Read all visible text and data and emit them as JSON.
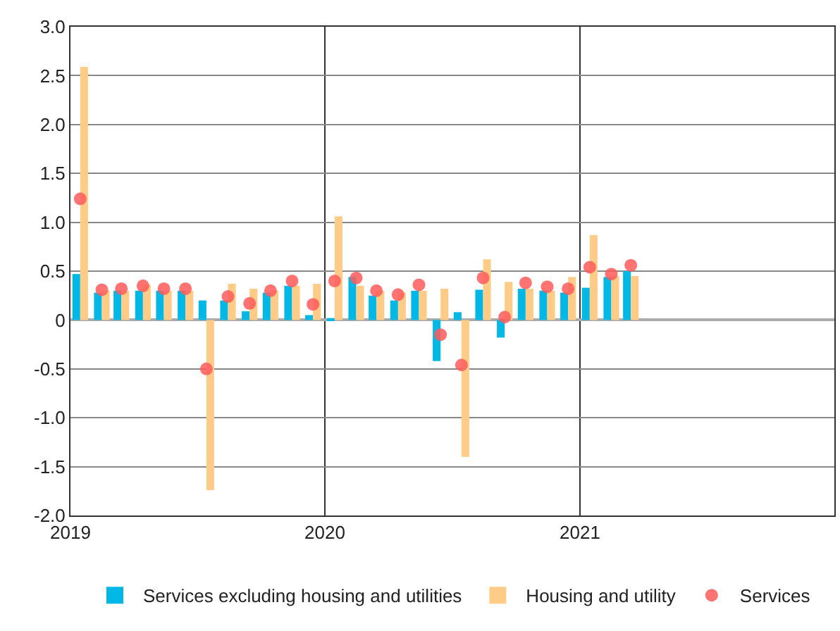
{
  "chart_data": {
    "type": "bar",
    "x": [
      "2019-01-15",
      "2019-02-15",
      "2019-03-15",
      "2019-04-15",
      "2019-05-15",
      "2019-06-15",
      "2019-07-15",
      "2019-08-15",
      "2019-09-15",
      "2019-10-15",
      "2019-11-15",
      "2019-12-15",
      "2020-01-15",
      "2020-02-15",
      "2020-03-15",
      "2020-04-15",
      "2020-05-15",
      "2020-06-15",
      "2020-07-15",
      "2020-08-15",
      "2020-09-15",
      "2020-10-15",
      "2020-11-15",
      "2020-12-15",
      "2021-01-15",
      "2021-02-15",
      "2021-03-15"
    ],
    "series": [
      {
        "name": "Services excluding housing and utilities",
        "color": "#00b8e6",
        "values": [
          0.47,
          0.28,
          0.3,
          0.3,
          0.3,
          0.3,
          0.2,
          0.2,
          0.09,
          0.28,
          0.35,
          0.05,
          0.02,
          0.44,
          0.25,
          0.2,
          0.3,
          -0.42,
          0.08,
          0.31,
          -0.18,
          0.32,
          0.3,
          0.28,
          0.33,
          0.44,
          0.5
        ]
      },
      {
        "name": "Housing and utility",
        "color": "#ffcc88",
        "values": [
          2.59,
          0.3,
          0.3,
          0.36,
          0.3,
          0.3,
          -1.74,
          0.37,
          0.32,
          0.3,
          0.35,
          0.37,
          1.06,
          0.35,
          0.3,
          0.28,
          0.3,
          0.32,
          -1.4,
          0.62,
          0.39,
          0.32,
          0.3,
          0.44,
          0.87,
          0.45,
          0.45
        ]
      },
      {
        "name": "Services",
        "type": "scatter",
        "color": "#ff5a5a",
        "values": [
          1.24,
          0.31,
          0.32,
          0.35,
          0.32,
          0.32,
          -0.5,
          0.24,
          0.17,
          0.3,
          0.4,
          0.16,
          0.4,
          0.43,
          0.3,
          0.26,
          0.36,
          -0.15,
          -0.46,
          0.43,
          0.03,
          0.38,
          0.34,
          0.32,
          0.54,
          0.47,
          0.56
        ]
      }
    ],
    "xlim": [
      "2019-01",
      "2022-01"
    ],
    "xticks": [
      {
        "value": "2019",
        "label": "2019"
      },
      {
        "value": "2020",
        "label": "2020"
      },
      {
        "value": "2021",
        "label": "2021"
      }
    ],
    "ylim": [
      -2,
      3
    ],
    "yticks": [
      {
        "value": -2,
        "label": "-2.0"
      },
      {
        "value": -1.5,
        "label": "-1.5"
      },
      {
        "value": -1,
        "label": "-1.0"
      },
      {
        "value": -0.5,
        "label": "-0.5"
      },
      0,
      {
        "value": 0.5,
        "label": "0.5"
      },
      {
        "value": 1,
        "label": "1.0"
      },
      {
        "value": 1.5,
        "label": "1.5"
      },
      {
        "value": 2,
        "label": "2.0"
      },
      {
        "value": 2.5,
        "label": "2.5"
      },
      {
        "value": 3,
        "label": "3.0"
      }
    ],
    "grid": true,
    "legend": "bottom",
    "marker": "circle"
  }
}
